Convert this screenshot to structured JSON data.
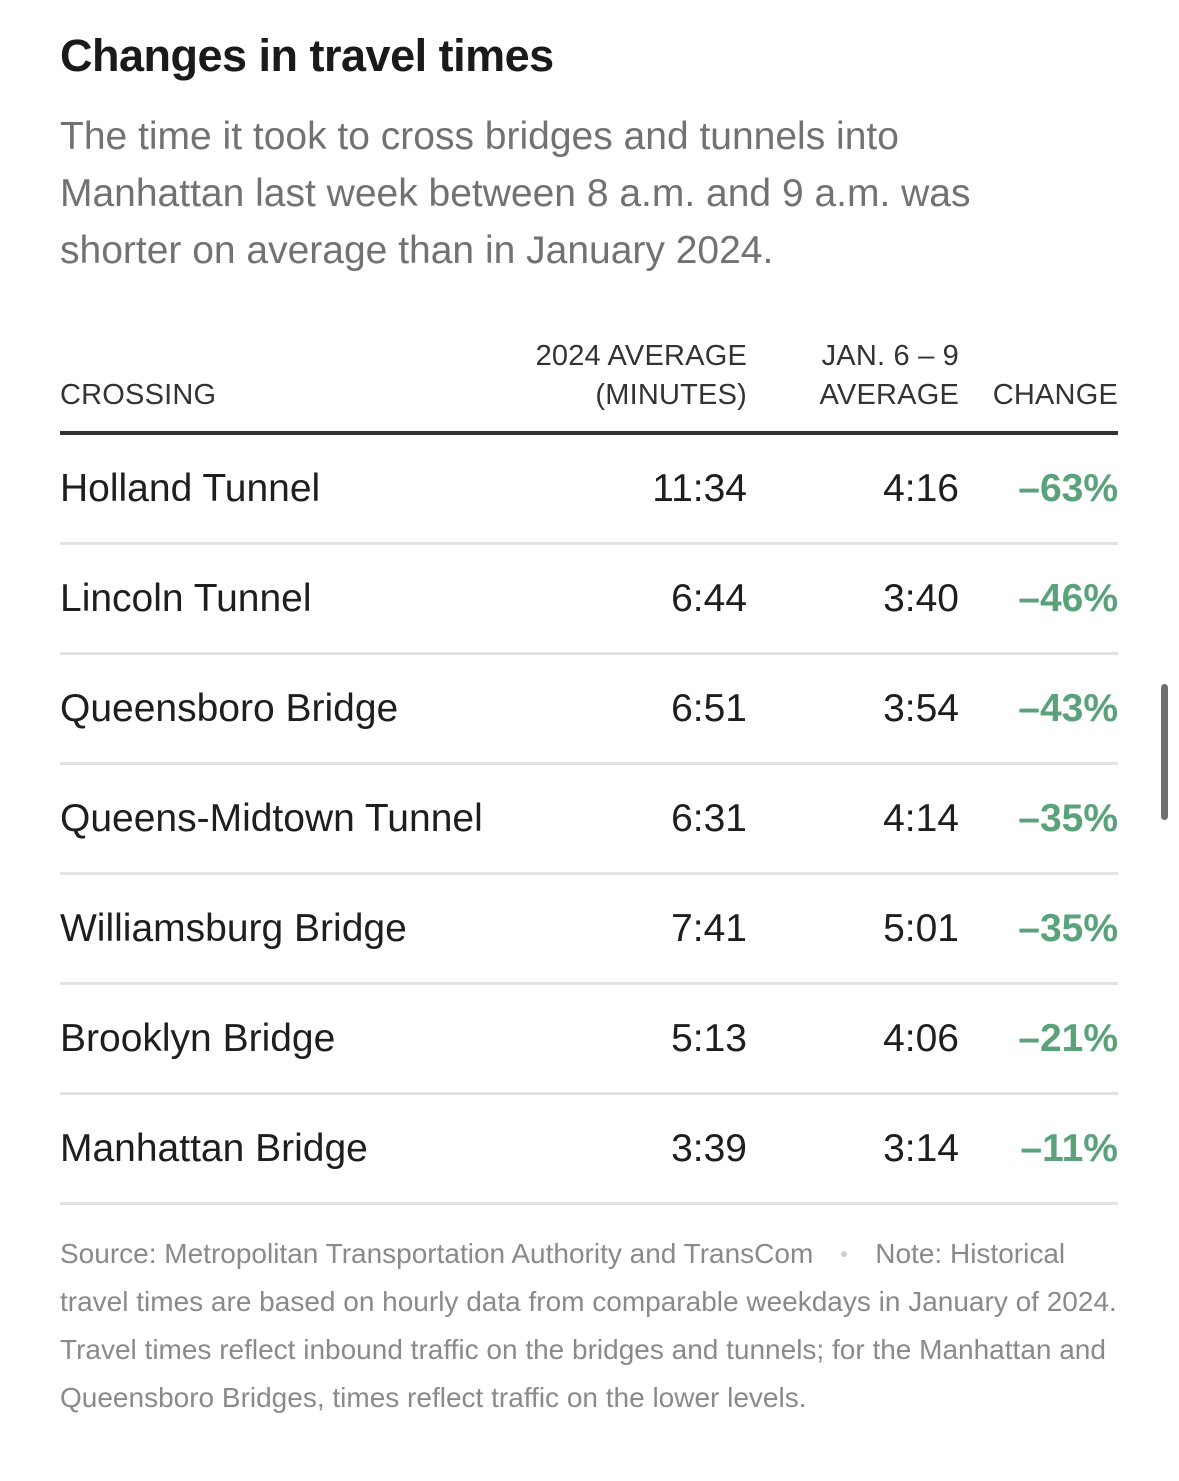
{
  "chart_data": {
    "type": "table",
    "title": "Changes in travel times",
    "subtitle": "The time it took to cross bridges and tunnels into Manhattan last week between 8 a.m. and 9 a.m. was shorter on average than in January 2024.",
    "columns": {
      "crossing": "CROSSING",
      "avg2024_line1": "2024 AVERAGE",
      "avg2024_line2": "(MINUTES)",
      "jan_line1": "JAN. 6 – 9",
      "jan_line2": "AVERAGE",
      "change": "CHANGE"
    },
    "rows": [
      {
        "crossing": "Holland Tunnel",
        "avg_2024": "11:34",
        "jan_6_9_avg": "4:16",
        "change": "–63%"
      },
      {
        "crossing": "Lincoln Tunnel",
        "avg_2024": "6:44",
        "jan_6_9_avg": "3:40",
        "change": "–46%"
      },
      {
        "crossing": "Queensboro Bridge",
        "avg_2024": "6:51",
        "jan_6_9_avg": "3:54",
        "change": "–43%"
      },
      {
        "crossing": "Queens-Midtown Tunnel",
        "avg_2024": "6:31",
        "jan_6_9_avg": "4:14",
        "change": "–35%"
      },
      {
        "crossing": "Williamsburg Bridge",
        "avg_2024": "7:41",
        "jan_6_9_avg": "5:01",
        "change": "–35%"
      },
      {
        "crossing": "Brooklyn Bridge",
        "avg_2024": "5:13",
        "jan_6_9_avg": "4:06",
        "change": "–21%"
      },
      {
        "crossing": "Manhattan Bridge",
        "avg_2024": "3:39",
        "jan_6_9_avg": "3:14",
        "change": "–11%"
      }
    ],
    "change_color": "#5aa27a",
    "source": "Source: Metropolitan Transportation Authority and TransCom",
    "note": "Note: Historical travel times are based on hourly data from comparable weekdays in January of 2024. Travel times reflect inbound traffic on the bridges and tunnels; for the Manhattan and Queensboro Bridges, times reflect traffic on the lower levels."
  }
}
